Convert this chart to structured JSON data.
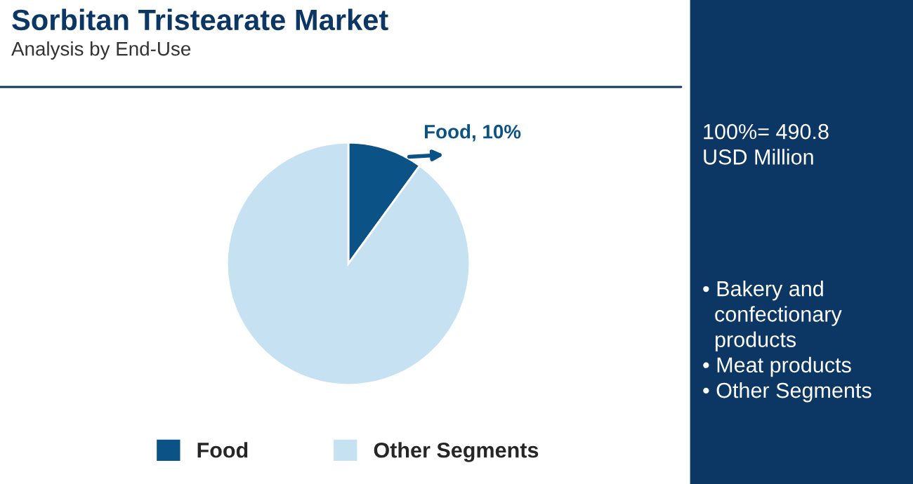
{
  "chart_data": {
    "type": "pie",
    "title": "Sorbitan Tristearate Market",
    "subtitle": "Analysis by End-Use",
    "categories": [
      "Food",
      "Other Segments"
    ],
    "values": [
      10,
      90
    ],
    "colors": [
      "#0b5286",
      "#c6e2f2"
    ],
    "value_labels": [
      "Food, 10%",
      null
    ],
    "legend": "bottom",
    "annotations": [
      "100%= 490.8\nUSD Million",
      "• Bakery and\n  confectionary\n  products\n• Meat products\n• Other Segments"
    ]
  }
}
